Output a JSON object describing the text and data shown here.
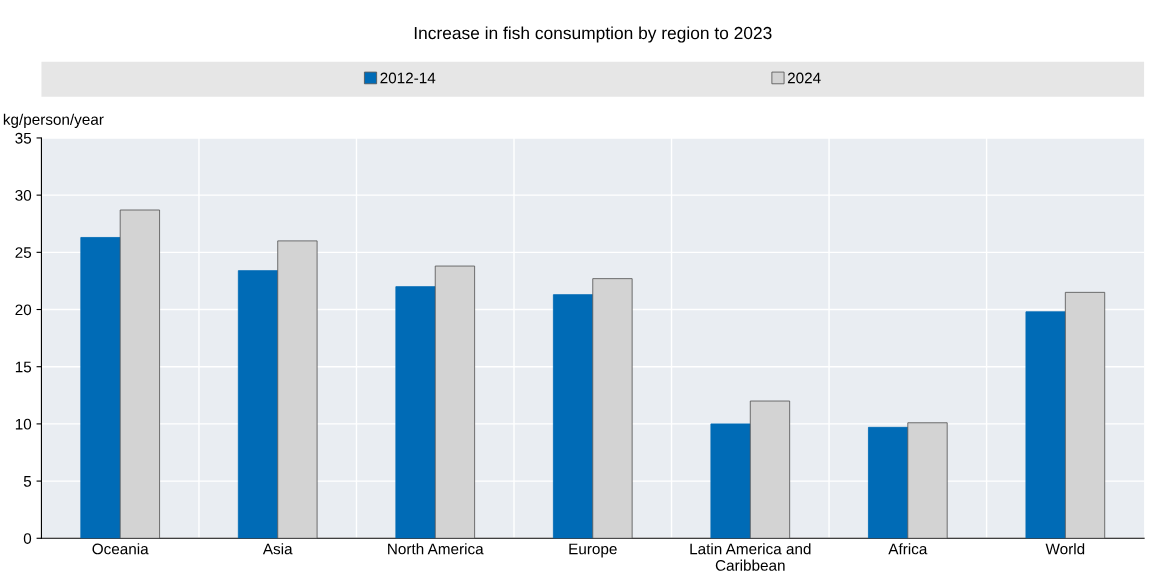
{
  "chart_data": {
    "type": "bar",
    "title": "Increase in fish consumption by region to 2023",
    "ylabel": "kg/person/year",
    "categories": [
      "Oceania",
      "Asia",
      "North America",
      "Europe",
      "Latin America and\nCaribbean",
      "Africa",
      "World"
    ],
    "series": [
      {
        "name": "2012-14",
        "color": "#006bb6",
        "values": [
          26.3,
          23.4,
          22.0,
          21.3,
          10.0,
          9.7,
          19.8
        ]
      },
      {
        "name": "2024",
        "color": "#d3d3d3",
        "values": [
          28.7,
          26.0,
          23.8,
          22.7,
          12.0,
          10.1,
          21.5
        ]
      }
    ],
    "ylim": [
      0,
      35
    ],
    "yticks": [
      0,
      5,
      10,
      15,
      20,
      25,
      30,
      35
    ],
    "grid": "y",
    "legend": "top"
  }
}
